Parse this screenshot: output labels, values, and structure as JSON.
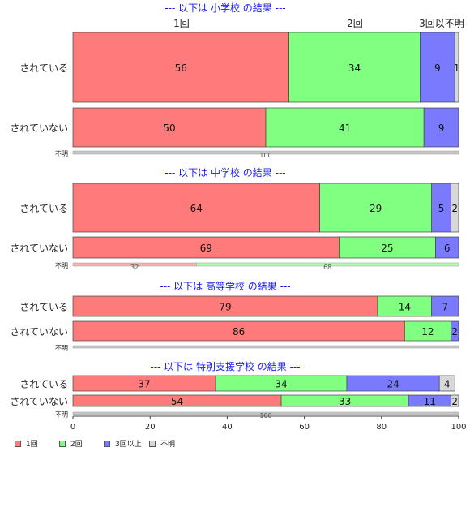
{
  "chart_data": {
    "type": "bar",
    "orientation": "horizontal",
    "stacked": true,
    "xlim": [
      0,
      100
    ],
    "xticks": [
      0,
      20,
      40,
      60,
      80,
      100
    ],
    "top_header_labels": [
      "1回",
      "2回",
      "3回以不明"
    ],
    "colors": {
      "1回": "#ff7a7a",
      "2回": "#80ff80",
      "3回以上": "#7a7aff",
      "不明": "#d8d8d8"
    },
    "legend": [
      {
        "name": "1回",
        "color": "#ff7a7a"
      },
      {
        "name": "2回",
        "color": "#80ff80"
      },
      {
        "name": "3回以上",
        "color": "#7a7aff"
      },
      {
        "name": "不明",
        "color": "#d8d8d8"
      }
    ],
    "panels": [
      {
        "title": "--- 以下は 小学校 の結果 ---",
        "rows": [
          {
            "label": "されている",
            "values": [
              56,
              34,
              9,
              1
            ]
          },
          {
            "label": "されていない",
            "values": [
              50,
              41,
              9,
              0
            ]
          },
          {
            "label": "不明",
            "values": [
              0,
              0,
              0,
              100
            ],
            "labels": [
              "",
              "",
              "",
              "100"
            ]
          }
        ]
      },
      {
        "title": "--- 以下は 中学校 の結果 ---",
        "rows": [
          {
            "label": "されている",
            "values": [
              64,
              29,
              5,
              2
            ]
          },
          {
            "label": "されていない",
            "values": [
              69,
              25,
              6,
              0
            ]
          },
          {
            "label": "不明",
            "values": [
              32,
              68,
              0,
              0
            ],
            "labels": [
              "32",
              "68",
              "",
              ""
            ]
          }
        ]
      },
      {
        "title": "--- 以下は 高等学校 の結果 ---",
        "rows": [
          {
            "label": "されている",
            "values": [
              79,
              14,
              7,
              0
            ]
          },
          {
            "label": "されていない",
            "values": [
              86,
              12,
              2,
              0
            ]
          },
          {
            "label": "不明",
            "values": [
              0,
              0,
              0,
              100
            ],
            "labels": [
              "",
              "",
              "",
              ""
            ]
          }
        ]
      },
      {
        "title": "--- 以下は 特別支援学校 の結果 ---",
        "rows": [
          {
            "label": "されている",
            "values": [
              37,
              34,
              24,
              4
            ]
          },
          {
            "label": "されていない",
            "values": [
              54,
              33,
              11,
              2
            ]
          },
          {
            "label": "不明",
            "values": [
              0,
              0,
              0,
              100
            ],
            "labels": [
              "",
              "",
              "",
              "100"
            ]
          }
        ]
      }
    ]
  }
}
